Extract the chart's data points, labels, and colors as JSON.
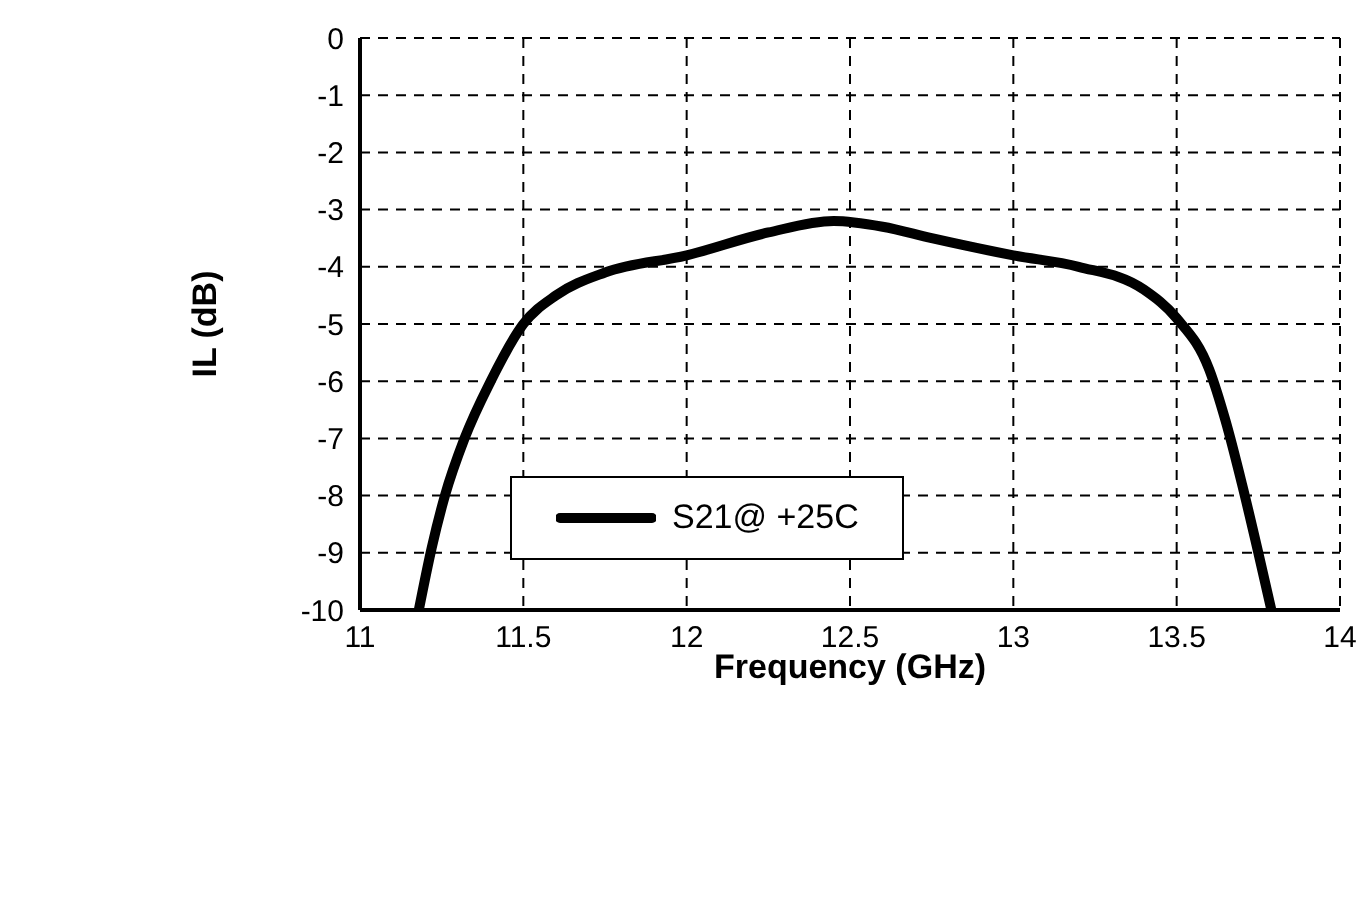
{
  "chart_data": {
    "type": "line",
    "xlabel": "Frequency (GHz)",
    "ylabel": "IL (dB)",
    "xlim": [
      11,
      14
    ],
    "xticks": [
      11,
      11.5,
      12,
      12.5,
      13,
      13.5,
      14
    ],
    "ylim": [
      -10,
      0
    ],
    "yticks": [
      0,
      -1,
      -2,
      -3,
      -4,
      -5,
      -6,
      -7,
      -8,
      -9,
      -10
    ],
    "grid": true,
    "legend": "center",
    "line_style": "solid",
    "marker": "none",
    "series": [
      {
        "name": "S21@ +25C",
        "color": "#000000",
        "x": [
          11.18,
          11.22,
          11.26,
          11.32,
          11.4,
          11.5,
          11.6,
          11.75,
          12.0,
          12.25,
          12.45,
          12.6,
          12.75,
          13.0,
          13.2,
          13.4,
          13.5,
          13.6,
          13.65,
          13.7,
          13.75,
          13.79
        ],
        "values": [
          -10,
          -8.9,
          -8,
          -7,
          -6,
          -5,
          -4.5,
          -4.1,
          -3.8,
          -3.4,
          -3.2,
          -3.3,
          -3.5,
          -3.8,
          -4,
          -4.4,
          -4.9,
          -5.8,
          -6.7,
          -7.8,
          -9,
          -10
        ]
      }
    ]
  }
}
